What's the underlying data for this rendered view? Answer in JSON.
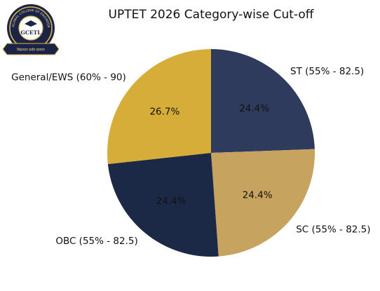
{
  "logo": {
    "abbr": "GCETL",
    "ring_text": "GLOBAL COLLEGE OF ENGINEERING TECHNOLOGY & LEARNING",
    "ribbon_text": "विद्यावान सर्वत्र सम्मान"
  },
  "chart_data": {
    "type": "pie",
    "title": "UPTET 2026 Category-wise Cut-off",
    "start_angle_deg": 90,
    "direction": "clockwise",
    "slices": [
      {
        "label": "ST (55% - 82.5)",
        "value": 24.4,
        "pct_label": "24.4%",
        "color": "#2f3b5c"
      },
      {
        "label": "SC (55% - 82.5)",
        "value": 24.4,
        "pct_label": "24.4%",
        "color": "#c6a35e"
      },
      {
        "label": "OBC (55% - 82.5)",
        "value": 24.4,
        "pct_label": "24.4%",
        "color": "#1c2946"
      },
      {
        "label": "General/EWS (60% - 90)",
        "value": 26.7,
        "pct_label": "26.7%",
        "color": "#d5ad38"
      }
    ]
  }
}
